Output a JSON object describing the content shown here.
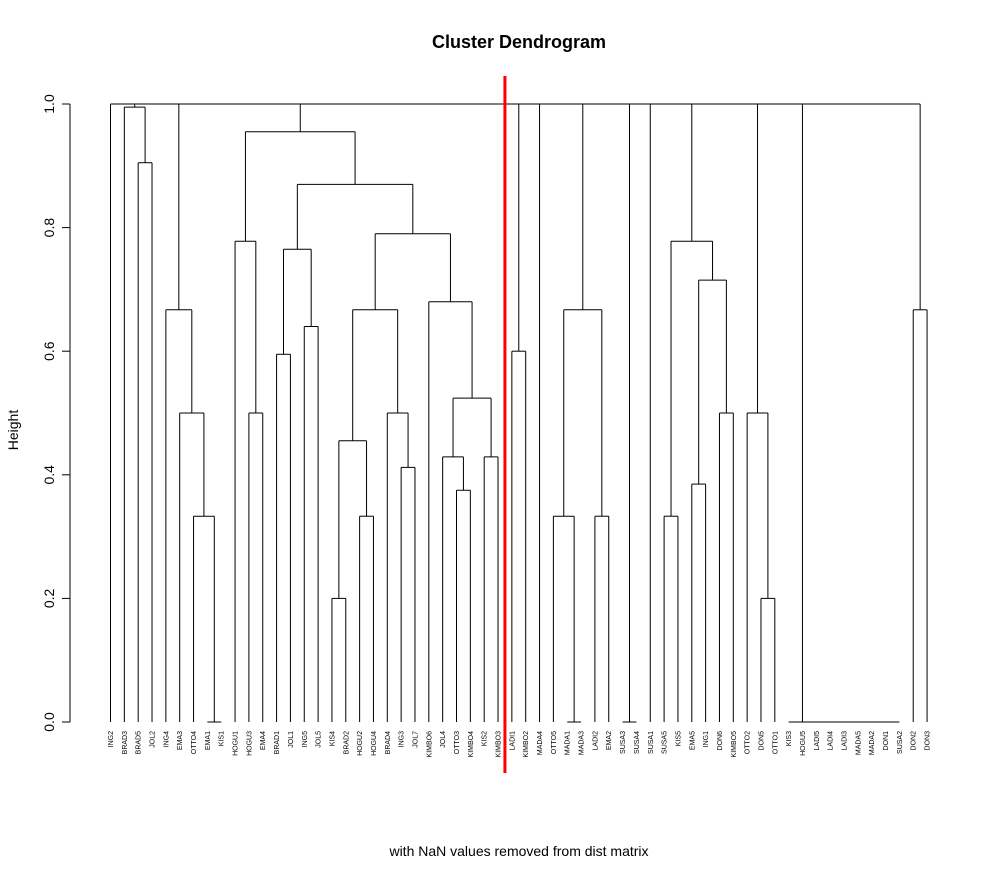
{
  "chart_data": {
    "type": "dendrogram",
    "title": "Cluster Dendrogram",
    "xlabel": "with NaN values removed from dist matrix",
    "ylabel": "Height",
    "ylim": [
      0,
      1
    ],
    "yticks": [
      "0.0",
      "0.2",
      "0.4",
      "0.6",
      "0.8",
      "1.0"
    ],
    "cut_line_color": "#ff0000",
    "leaves": [
      "ING2",
      "BRAD3",
      "BRAD5",
      "JOL2",
      "ING4",
      "EMA3",
      "OTTO4",
      "EMA1",
      "KIS1",
      "HOGU1",
      "HOGU3",
      "EMA4",
      "BRAD1",
      "JOL1",
      "ING5",
      "JOL5",
      "KIS4",
      "BRAD2",
      "HOGU2",
      "HOGU4",
      "BRAD4",
      "ING3",
      "JOL7",
      "KIMBO6",
      "JOL4",
      "OTTO3",
      "KIMBO4",
      "KIS2",
      "KIMBO3",
      "LADI1",
      "KIMBO2",
      "MADA4",
      "OTTO5",
      "MADA1",
      "MADA3",
      "LADI2",
      "EMA2",
      "SUSA3",
      "SUSA4",
      "SUSA1",
      "SUSA5",
      "KIS5",
      "EMA5",
      "ING1",
      "DON6",
      "KIMBO5",
      "OTTO2",
      "DON5",
      "OTTO1",
      "KIS3",
      "HOGU5",
      "LADI5",
      "LADI4",
      "LADI3",
      "MADA5",
      "MADA2",
      "DON1",
      "SUSA2",
      "DON2",
      "DON3"
    ],
    "merges": [
      {
        "id": "a1",
        "left": "L7",
        "right": "L8",
        "height": 0.0
      },
      {
        "id": "a2",
        "left": "L6",
        "right": "a1",
        "height": 0.333
      },
      {
        "id": "a3",
        "left": "L5",
        "right": "a2",
        "height": 0.5
      },
      {
        "id": "a4",
        "left": "L4",
        "right": "a3",
        "height": 0.667
      },
      {
        "id": "b1",
        "left": "L2",
        "right": "L3",
        "height": 0.905
      },
      {
        "id": "b2",
        "left": "L1",
        "right": "b1",
        "height": 0.995
      },
      {
        "id": "h1",
        "left": "L10",
        "right": "L11",
        "height": 0.5
      },
      {
        "id": "h2",
        "left": "L9",
        "right": "h1",
        "height": 0.778
      },
      {
        "id": "j1",
        "left": "L12",
        "right": "L13",
        "height": 0.595
      },
      {
        "id": "j2",
        "left": "L14",
        "right": "L15",
        "height": 0.64
      },
      {
        "id": "j3",
        "left": "j1",
        "right": "j2",
        "height": 0.765
      },
      {
        "id": "k1",
        "left": "L16",
        "right": "L17",
        "height": 0.2
      },
      {
        "id": "k2",
        "left": "L18",
        "right": "L19",
        "height": 0.333
      },
      {
        "id": "k3",
        "left": "k1",
        "right": "k2",
        "height": 0.455
      },
      {
        "id": "k4",
        "left": "L21",
        "right": "L22",
        "height": 0.412
      },
      {
        "id": "k5",
        "left": "L20",
        "right": "k4",
        "height": 0.5
      },
      {
        "id": "k6",
        "left": "k3",
        "right": "k5",
        "height": 0.667
      },
      {
        "id": "m1",
        "left": "L25",
        "right": "L26",
        "height": 0.375
      },
      {
        "id": "m2",
        "left": "L24",
        "right": "m1",
        "height": 0.429
      },
      {
        "id": "m3",
        "left": "L27",
        "right": "L28",
        "height": 0.429
      },
      {
        "id": "m4",
        "left": "m2",
        "right": "m3",
        "height": 0.524
      },
      {
        "id": "m5",
        "left": "L23",
        "right": "m4",
        "height": 0.68
      },
      {
        "id": "m6",
        "left": "k6",
        "right": "m5",
        "height": 0.79
      },
      {
        "id": "n1",
        "left": "j3",
        "right": "m6",
        "height": 0.87
      },
      {
        "id": "n2",
        "left": "h2",
        "right": "n1",
        "height": 0.955
      },
      {
        "id": "p1",
        "left": "L29",
        "right": "L30",
        "height": 0.6
      },
      {
        "id": "q1",
        "left": "L33",
        "right": "L34",
        "height": 0.0
      },
      {
        "id": "q2",
        "left": "L32",
        "right": "q1",
        "height": 0.333
      },
      {
        "id": "q3",
        "left": "L35",
        "right": "L36",
        "height": 0.333
      },
      {
        "id": "q4",
        "left": "q2",
        "right": "q3",
        "height": 0.667
      },
      {
        "id": "s1",
        "left": "L37",
        "right": "L38",
        "height": 0.0
      },
      {
        "id": "r1",
        "left": "L42",
        "right": "L43",
        "height": 0.385
      },
      {
        "id": "r2",
        "left": "L44",
        "right": "L45",
        "height": 0.5
      },
      {
        "id": "r3",
        "left": "r1",
        "right": "r2",
        "height": 0.715
      },
      {
        "id": "r4",
        "left": "L40",
        "right": "L41",
        "height": 0.333
      },
      {
        "id": "r5",
        "left": "r4",
        "right": "r3",
        "height": 0.778
      },
      {
        "id": "t1",
        "left": "L47",
        "right": "L48",
        "height": 0.2
      },
      {
        "id": "t2",
        "left": "L46",
        "right": "t1",
        "height": 0.5
      },
      {
        "id": "u1",
        "left": "L56",
        "right": "L57",
        "height": 0.0
      },
      {
        "id": "u2",
        "left": "L55",
        "right": "u1",
        "height": 0.0
      },
      {
        "id": "u3",
        "left": "L54",
        "right": "u2",
        "height": 0.0
      },
      {
        "id": "u4",
        "left": "L53",
        "right": "u3",
        "height": 0.0
      },
      {
        "id": "u5",
        "left": "L52",
        "right": "u4",
        "height": 0.0
      },
      {
        "id": "u6",
        "left": "L51",
        "right": "u5",
        "height": 0.0
      },
      {
        "id": "u7",
        "left": "L50",
        "right": "u6",
        "height": 0.0
      },
      {
        "id": "u8",
        "left": "L49",
        "right": "u7",
        "height": 0.0
      },
      {
        "id": "v1",
        "left": "L58",
        "right": "L59",
        "height": 0.667
      },
      {
        "id": "w1",
        "left": "u8",
        "right": "v1",
        "height": 1.0
      },
      {
        "id": "w2",
        "left": "t2",
        "right": "w1",
        "height": 1.0
      },
      {
        "id": "w3",
        "left": "r5",
        "right": "w2",
        "height": 1.0
      },
      {
        "id": "w4",
        "left": "L39",
        "right": "w3",
        "height": 1.0
      },
      {
        "id": "w5",
        "left": "s1",
        "right": "w4",
        "height": 1.0
      },
      {
        "id": "w6",
        "left": "q4",
        "right": "w5",
        "height": 1.0
      },
      {
        "id": "w7",
        "left": "L31",
        "right": "w6",
        "height": 1.0
      },
      {
        "id": "w8",
        "left": "p1",
        "right": "w7",
        "height": 1.0
      },
      {
        "id": "w9",
        "left": "n2",
        "right": "w8",
        "height": 1.0
      },
      {
        "id": "w10",
        "left": "a4",
        "right": "w9",
        "height": 1.0
      },
      {
        "id": "w11",
        "left": "b2",
        "right": "w10",
        "height": 1.0
      },
      {
        "id": "root",
        "left": "L0",
        "right": "w11",
        "height": 1.0
      }
    ],
    "cut_line": {
      "position_between_leaves": [
        28,
        29
      ],
      "color": "#ff0000"
    }
  }
}
